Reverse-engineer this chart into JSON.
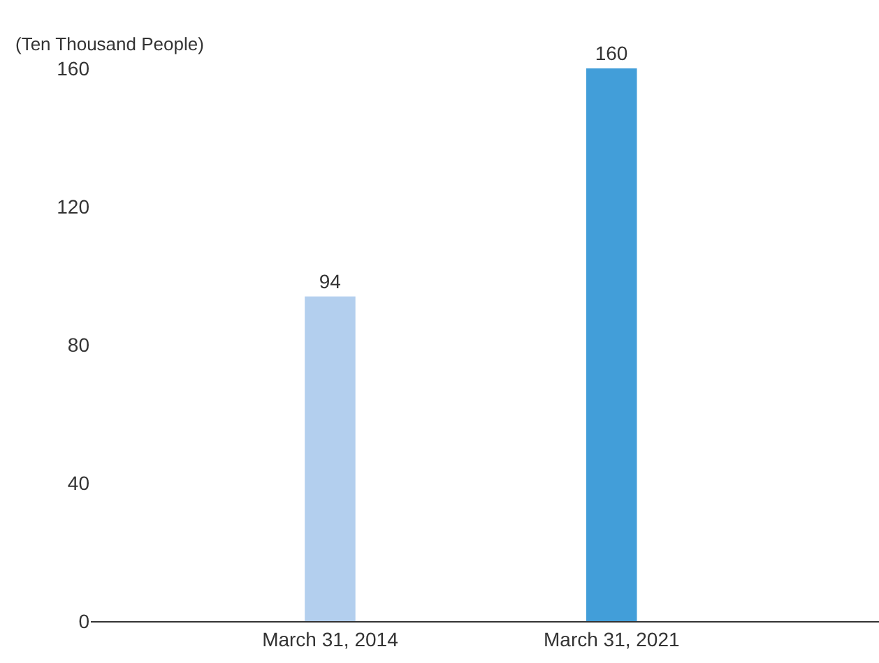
{
  "chart_data": {
    "type": "bar",
    "ylabel": "(Ten Thousand People)",
    "categories": [
      "March 31, 2014",
      "March 31, 2021"
    ],
    "values": [
      94,
      160
    ],
    "colors": [
      "#b3cfee",
      "#429ed9"
    ],
    "ylim": [
      0,
      160
    ],
    "yticks": [
      0,
      40,
      80,
      120,
      160
    ],
    "data_labels": true
  }
}
